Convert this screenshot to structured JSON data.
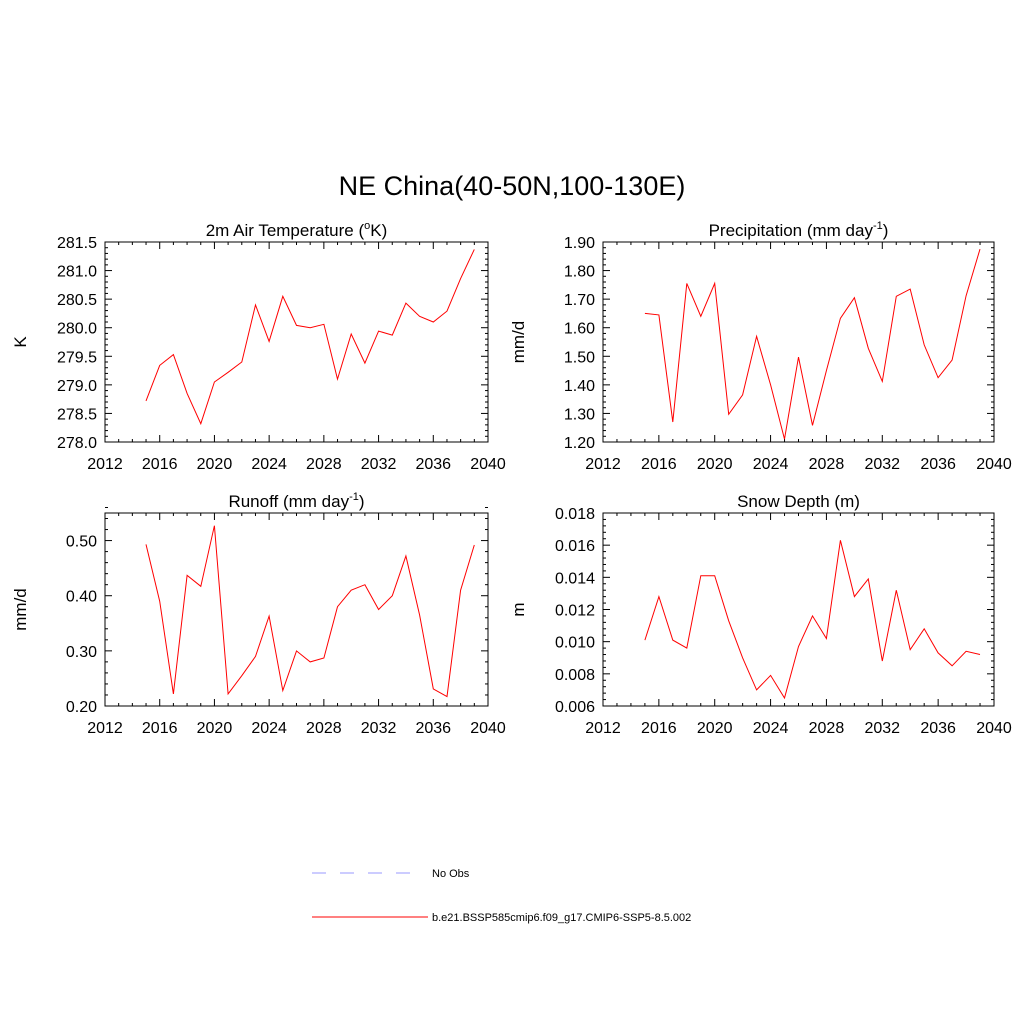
{
  "title": "NE China(40-50N,100-130E)",
  "legend": {
    "items": [
      {
        "label": "No Obs",
        "color": "#9999ff",
        "dash": "dashed"
      },
      {
        "label": "b.e21.BSSP585cmip6.f09_g17.CMIP6-SSP5-8.5.002",
        "color": "#ff0000",
        "dash": "solid"
      }
    ]
  },
  "chart_data": [
    {
      "type": "line",
      "title": "2m Air Temperature (",
      "title_sup": "o",
      "title_after": "K)",
      "ylabel": "K",
      "xlim": [
        2012,
        2040
      ],
      "xticks": [
        2012,
        2016,
        2020,
        2024,
        2028,
        2032,
        2036,
        2040
      ],
      "ylim": [
        278.0,
        281.5
      ],
      "yticks": [
        "278.0",
        "278.5",
        "279.0",
        "279.5",
        "280.0",
        "280.5",
        "281.0",
        "281.5"
      ],
      "color": "#ff0000",
      "series": [
        {
          "x": [
            2015,
            2016,
            2017,
            2018,
            2019,
            2020,
            2021,
            2022,
            2023,
            2024,
            2025,
            2026,
            2027,
            2028,
            2029,
            2030,
            2031,
            2032,
            2033,
            2034,
            2035,
            2036,
            2037,
            2038,
            2039
          ],
          "y": [
            278.72,
            279.34,
            279.53,
            278.85,
            278.32,
            279.05,
            279.22,
            279.4,
            280.4,
            279.76,
            280.55,
            280.04,
            280.0,
            280.06,
            279.1,
            279.89,
            279.38,
            279.94,
            279.87,
            280.43,
            280.2,
            280.1,
            280.29,
            280.86,
            281.37
          ]
        }
      ]
    },
    {
      "type": "line",
      "title": "Precipitation (mm day",
      "title_sup": "-1",
      "title_after": ")",
      "ylabel": "mm/d",
      "xlim": [
        2012,
        2040
      ],
      "xticks": [
        2012,
        2016,
        2020,
        2024,
        2028,
        2032,
        2036,
        2040
      ],
      "ylim": [
        1.2,
        1.9
      ],
      "yticks": [
        "1.20",
        "1.30",
        "1.40",
        "1.50",
        "1.60",
        "1.70",
        "1.80",
        "1.90"
      ],
      "color": "#ff0000",
      "series": [
        {
          "x": [
            2015,
            2016,
            2017,
            2018,
            2019,
            2020,
            2021,
            2022,
            2023,
            2024,
            2025,
            2026,
            2027,
            2028,
            2029,
            2030,
            2031,
            2032,
            2033,
            2034,
            2035,
            2036,
            2037,
            2038,
            2039
          ],
          "y": [
            1.65,
            1.645,
            1.27,
            1.755,
            1.64,
            1.755,
            1.297,
            1.365,
            1.57,
            1.4,
            1.21,
            1.497,
            1.258,
            1.45,
            1.633,
            1.705,
            1.528,
            1.412,
            1.71,
            1.735,
            1.54,
            1.425,
            1.487,
            1.712,
            1.875
          ]
        }
      ]
    },
    {
      "type": "line",
      "title": "Runoff (mm day",
      "title_sup": "-1",
      "title_after": ")",
      "ylabel": "mm/d",
      "xlim": [
        2012,
        2040
      ],
      "xticks": [
        2012,
        2016,
        2020,
        2024,
        2028,
        2032,
        2036,
        2040
      ],
      "ylim": [
        0.2,
        0.55
      ],
      "yticks": [
        "0.20",
        "0.30",
        "0.40",
        "0.50"
      ],
      "color": "#ff0000",
      "series": [
        {
          "x": [
            2015,
            2016,
            2017,
            2018,
            2019,
            2020,
            2021,
            2022,
            2023,
            2024,
            2025,
            2026,
            2027,
            2028,
            2029,
            2030,
            2031,
            2032,
            2033,
            2034,
            2035,
            2036,
            2037,
            2038,
            2039
          ],
          "y": [
            0.493,
            0.39,
            0.222,
            0.437,
            0.417,
            0.527,
            0.222,
            0.255,
            0.29,
            0.363,
            0.228,
            0.3,
            0.28,
            0.287,
            0.38,
            0.41,
            0.42,
            0.375,
            0.4,
            0.472,
            0.365,
            0.231,
            0.217,
            0.41,
            0.492
          ]
        }
      ]
    },
    {
      "type": "line",
      "title": "Snow Depth (m)",
      "title_sup": "",
      "title_after": "",
      "ylabel": "m",
      "xlim": [
        2012,
        2040
      ],
      "xticks": [
        2012,
        2016,
        2020,
        2024,
        2028,
        2032,
        2036,
        2040
      ],
      "ylim": [
        0.006,
        0.018
      ],
      "yticks": [
        "0.006",
        "0.008",
        "0.010",
        "0.012",
        "0.014",
        "0.016",
        "0.018"
      ],
      "color": "#ff0000",
      "series": [
        {
          "x": [
            2015,
            2016,
            2017,
            2018,
            2019,
            2020,
            2021,
            2022,
            2023,
            2024,
            2025,
            2026,
            2027,
            2028,
            2029,
            2030,
            2031,
            2032,
            2033,
            2034,
            2035,
            2036,
            2037,
            2038,
            2039
          ],
          "y": [
            0.0101,
            0.0128,
            0.0101,
            0.0096,
            0.0141,
            0.0141,
            0.0113,
            0.009,
            0.007,
            0.0079,
            0.0065,
            0.0097,
            0.0116,
            0.0102,
            0.0163,
            0.0128,
            0.0139,
            0.0088,
            0.0132,
            0.0095,
            0.0108,
            0.0093,
            0.0085,
            0.0094,
            0.0092
          ]
        }
      ]
    }
  ]
}
